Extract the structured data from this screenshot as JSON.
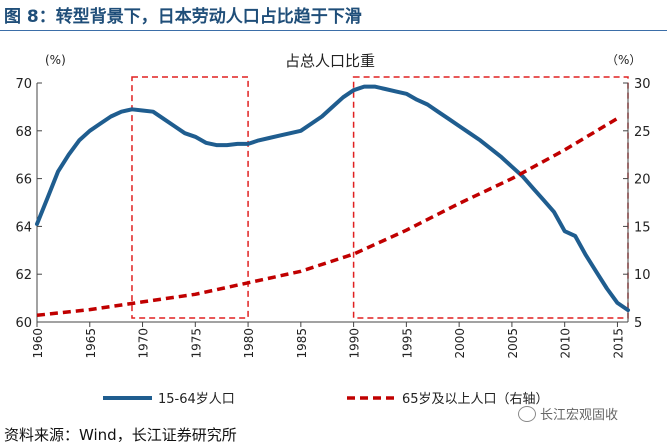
{
  "figure_title": "图 8：转型背景下，日本劳动人口占比趋于下滑",
  "source_text": "资料来源：Wind，长江证券研究所",
  "watermark_text": "长江宏观固收",
  "chart_data": {
    "type": "line",
    "title": "占总人口比重",
    "left_unit": "(%)",
    "right_unit": "（%）",
    "xlim": [
      1960,
      2016
    ],
    "ylim_left": [
      60,
      70
    ],
    "ylim_right": [
      5,
      30
    ],
    "x_ticks": [
      "1960",
      "1965",
      "1970",
      "1975",
      "1980",
      "1985",
      "1990",
      "1995",
      "2000",
      "2005",
      "2010",
      "2015"
    ],
    "y_left_ticks": [
      "60",
      "62",
      "64",
      "66",
      "68",
      "70"
    ],
    "y_right_ticks": [
      "5",
      "10",
      "15",
      "20",
      "25",
      "30"
    ],
    "series": [
      {
        "name": "15-64岁人口",
        "axis": "left",
        "color": "#1f5d8f",
        "style": "solid",
        "points": [
          [
            1960,
            64.1
          ],
          [
            1961,
            65.2
          ],
          [
            1962,
            66.3
          ],
          [
            1963,
            67.0
          ],
          [
            1964,
            67.6
          ],
          [
            1965,
            68.0
          ],
          [
            1966,
            68.3
          ],
          [
            1967,
            68.6
          ],
          [
            1968,
            68.8
          ],
          [
            1969,
            68.9
          ],
          [
            1970,
            68.85
          ],
          [
            1971,
            68.8
          ],
          [
            1972,
            68.5
          ],
          [
            1973,
            68.2
          ],
          [
            1974,
            67.9
          ],
          [
            1975,
            67.75
          ],
          [
            1976,
            67.5
          ],
          [
            1977,
            67.4
          ],
          [
            1978,
            67.4
          ],
          [
            1979,
            67.45
          ],
          [
            1980,
            67.45
          ],
          [
            1981,
            67.6
          ],
          [
            1982,
            67.7
          ],
          [
            1983,
            67.8
          ],
          [
            1984,
            67.9
          ],
          [
            1985,
            68.0
          ],
          [
            1986,
            68.3
          ],
          [
            1987,
            68.6
          ],
          [
            1988,
            69.0
          ],
          [
            1989,
            69.4
          ],
          [
            1990,
            69.7
          ],
          [
            1991,
            69.85
          ],
          [
            1992,
            69.85
          ],
          [
            1993,
            69.75
          ],
          [
            1994,
            69.65
          ],
          [
            1995,
            69.55
          ],
          [
            1996,
            69.3
          ],
          [
            1997,
            69.1
          ],
          [
            1998,
            68.8
          ],
          [
            1999,
            68.5
          ],
          [
            2000,
            68.2
          ],
          [
            2001,
            67.9
          ],
          [
            2002,
            67.6
          ],
          [
            2003,
            67.25
          ],
          [
            2004,
            66.9
          ],
          [
            2005,
            66.5
          ],
          [
            2006,
            66.1
          ],
          [
            2007,
            65.6
          ],
          [
            2008,
            65.1
          ],
          [
            2009,
            64.6
          ],
          [
            2010,
            63.8
          ],
          [
            2011,
            63.6
          ],
          [
            2012,
            62.8
          ],
          [
            2013,
            62.1
          ],
          [
            2014,
            61.4
          ],
          [
            2015,
            60.8
          ],
          [
            2016,
            60.5
          ]
        ]
      },
      {
        "name": "65岁及以上人口（右轴）",
        "axis": "right",
        "color": "#c00000",
        "style": "dashed",
        "points": [
          [
            1960,
            5.7
          ],
          [
            1965,
            6.3
          ],
          [
            1970,
            7.1
          ],
          [
            1975,
            7.9
          ],
          [
            1980,
            9.1
          ],
          [
            1985,
            10.3
          ],
          [
            1990,
            12.1
          ],
          [
            1995,
            14.6
          ],
          [
            2000,
            17.4
          ],
          [
            2005,
            20.0
          ],
          [
            2010,
            23.0
          ],
          [
            2015,
            26.3
          ]
        ]
      }
    ],
    "highlight_ranges": [
      [
        1969,
        1980
      ],
      [
        1990,
        2016
      ]
    ],
    "legend_position": "bottom",
    "grid": false
  }
}
